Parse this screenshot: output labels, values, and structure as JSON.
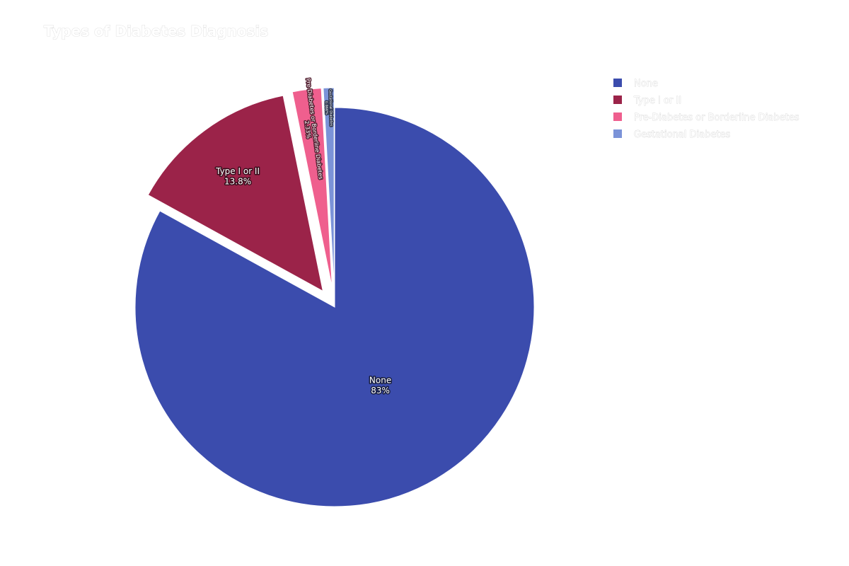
{
  "chart_data": {
    "type": "pie",
    "title": "Types of Diabetes Diagnosis",
    "categories": [
      "None",
      "Type I or II",
      "Pre-Diabetes or Borderline Diabetes",
      "Gestational Diabetes"
    ],
    "values": [
      83.0,
      13.8,
      2.33,
      0.866
    ],
    "value_labels": [
      "83%",
      "13.8%",
      "2.33%",
      "0.866%"
    ],
    "colors": [
      "#3b4cad",
      "#9b2349",
      "#ef5f8e",
      "#7b93d8"
    ],
    "pulled": [
      false,
      true,
      true,
      true
    ],
    "legend_position": "top-right",
    "text_info": "label+percent"
  }
}
